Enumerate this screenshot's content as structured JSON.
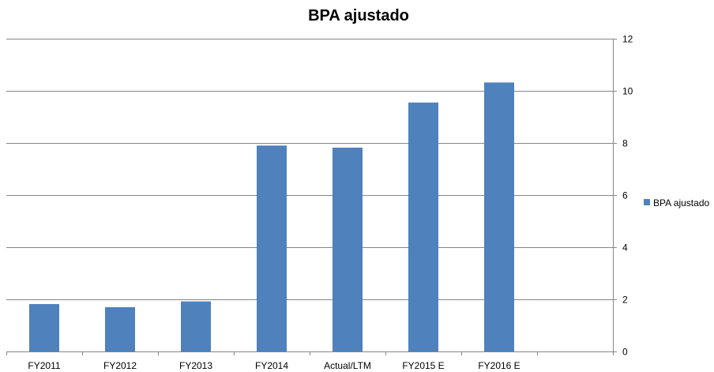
{
  "chart_data": {
    "type": "bar",
    "title": "BPA ajustado",
    "categories": [
      "FY2011",
      "FY2012",
      "FY2013",
      "FY2014",
      "Actual/LTM",
      "FY2015 E",
      "FY2016 E",
      ""
    ],
    "series": [
      {
        "name": "BPA ajustado",
        "values": [
          1.82,
          1.7,
          1.92,
          7.9,
          7.82,
          9.55,
          10.32,
          null
        ]
      }
    ],
    "ylim": [
      0,
      12
    ],
    "yticks": [
      0,
      2,
      4,
      6,
      8,
      10,
      12
    ],
    "y_axis_side": "right",
    "grid": true,
    "legend_position": "right",
    "colors": {
      "bar": "#4F81BD",
      "grid": "#868686",
      "axis": "#868686"
    }
  }
}
